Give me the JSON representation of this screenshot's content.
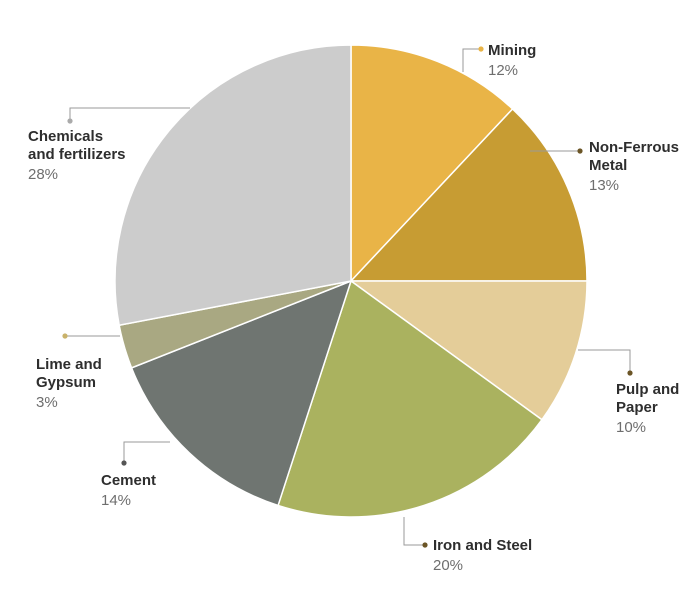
{
  "chart_data": {
    "type": "pie",
    "title": "",
    "slices": [
      {
        "label": "Mining",
        "value": 12,
        "value_label": "12%",
        "color": "#E9B447"
      },
      {
        "label": "Non-Ferrous Metal",
        "value": 13,
        "value_label": "13%",
        "color": "#C79C33"
      },
      {
        "label": "Pulp and Paper",
        "value": 10,
        "value_label": "10%",
        "color": "#E4CD99"
      },
      {
        "label": "Iron and Steel",
        "value": 20,
        "value_label": "20%",
        "color": "#AAB25F"
      },
      {
        "label": "Cement",
        "value": 14,
        "value_label": "14%",
        "color": "#6F7571"
      },
      {
        "label": "Lime and Gypsum",
        "value": 3,
        "value_label": "3%",
        "color": "#A9A882"
      },
      {
        "label": "Chemicals and fertilizers",
        "value": 28,
        "value_label": "28%",
        "color": "#CCCCCC"
      }
    ],
    "legend": "none",
    "label_style": "callout lines with dot markers",
    "marker_colors": {
      "mining": "#E9B447",
      "non_ferrous": "#6B5526",
      "pulp": "#6B5526",
      "iron": "#6B5526",
      "cement": "#555555",
      "lime": "#C9B26A",
      "chemicals": "#AAAAAA"
    }
  },
  "labels": {
    "mining": {
      "name": "Mining",
      "pct": "12%"
    },
    "non_ferrous": {
      "name_line1": "Non-Ferrous",
      "name_line2": "Metal",
      "pct": "13%"
    },
    "pulp": {
      "name_line1": "Pulp and",
      "name_line2": "Paper",
      "pct": "10%"
    },
    "iron": {
      "name": "Iron and Steel",
      "pct": "20%"
    },
    "cement": {
      "name": "Cement",
      "pct": "14%"
    },
    "lime": {
      "name_line1": "Lime and",
      "name_line2": "Gypsum",
      "pct": "3%"
    },
    "chemicals": {
      "name_line1": "Chemicals",
      "name_line2": "and fertilizers",
      "pct": "28%"
    }
  }
}
